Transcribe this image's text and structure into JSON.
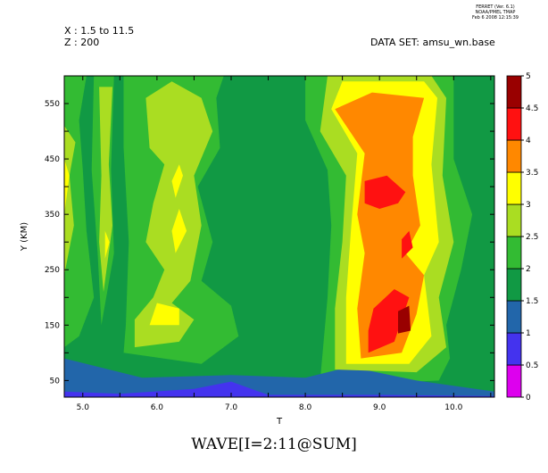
{
  "header": {
    "range_x": "X : 1.5 to 11.5",
    "range_z": "Z : 200",
    "dataset": "DATA SET: amsu_wn.base",
    "stamp": [
      "FERRET (Ver. 6.1)",
      "NOAA/PMEL TMAP",
      "Feb  6 2008 12:15:39"
    ]
  },
  "colors": {
    "levels": [
      "#dd00ee",
      "#4433ee",
      "#2266aa",
      "#119944",
      "#33bb33",
      "#aadd22",
      "#ffff00",
      "#ff8800",
      "#ff1111",
      "#990000"
    ]
  },
  "chart_data": {
    "type": "contour-filled",
    "title": "WAVE[I=2:11@SUM]",
    "xlabel": "T",
    "ylabel": "Y (KM)",
    "xlim": [
      4.75,
      10.55
    ],
    "ylim": [
      20,
      600
    ],
    "x_ticks": [
      5.0,
      5.5,
      6.0,
      6.5,
      7.0,
      7.5,
      8.0,
      8.5,
      9.0,
      9.5,
      10.0,
      10.5
    ],
    "x_tick_labels": [
      "5.0",
      "6.0",
      "7.0",
      "8.0",
      "9.0",
      "10.0"
    ],
    "x_tick_label_values": [
      5.0,
      6.0,
      7.0,
      8.0,
      9.0,
      10.0
    ],
    "y_ticks": [
      50,
      100,
      150,
      200,
      250,
      300,
      350,
      400,
      450,
      500,
      550
    ],
    "y_tick_labels": [
      "50",
      "150",
      "250",
      "350",
      "450",
      "550"
    ],
    "y_tick_label_values": [
      50,
      150,
      250,
      350,
      450,
      550
    ],
    "levels": [
      0,
      0.5,
      1,
      1.5,
      2,
      2.5,
      3,
      3.5,
      4,
      4.5,
      5
    ],
    "colorbar_labels": [
      "0",
      "0.5",
      "1",
      "1.5",
      "2",
      "2.5",
      "3",
      "3.5",
      "4",
      "4.5",
      "5"
    ],
    "regions": [
      {
        "level": 1.5,
        "points": [
          [
            4.75,
            20
          ],
          [
            10.55,
            20
          ],
          [
            10.55,
            600
          ],
          [
            4.75,
            600
          ]
        ]
      },
      {
        "level": 2.0,
        "points": [
          [
            4.95,
            130
          ],
          [
            5.15,
            200
          ],
          [
            5.05,
            320
          ],
          [
            5.0,
            430
          ],
          [
            4.95,
            520
          ],
          [
            5.05,
            600
          ],
          [
            4.75,
            600
          ],
          [
            4.75,
            110
          ]
        ]
      },
      {
        "level": 2.0,
        "points": [
          [
            5.25,
            150
          ],
          [
            5.42,
            280
          ],
          [
            5.38,
            430
          ],
          [
            5.42,
            600
          ],
          [
            5.15,
            600
          ],
          [
            5.12,
            430
          ],
          [
            5.2,
            280
          ]
        ]
      },
      {
        "level": 2.0,
        "points": [
          [
            5.55,
            100
          ],
          [
            6.6,
            80
          ],
          [
            7.1,
            130
          ],
          [
            7.0,
            185
          ],
          [
            6.6,
            230
          ],
          [
            6.75,
            300
          ],
          [
            6.55,
            400
          ],
          [
            6.85,
            470
          ],
          [
            6.8,
            560
          ],
          [
            6.9,
            600
          ],
          [
            5.55,
            600
          ],
          [
            5.55,
            470
          ],
          [
            5.62,
            300
          ],
          [
            5.58,
            150
          ]
        ]
      },
      {
        "level": 2.0,
        "points": [
          [
            8.2,
            50
          ],
          [
            8.3,
            200
          ],
          [
            8.35,
            330
          ],
          [
            8.3,
            430
          ],
          [
            8.0,
            520
          ],
          [
            8.0,
            600
          ],
          [
            10.0,
            600
          ],
          [
            10.0,
            450
          ],
          [
            10.25,
            350
          ],
          [
            10.1,
            250
          ],
          [
            9.9,
            150
          ],
          [
            9.95,
            90
          ],
          [
            9.8,
            50
          ],
          [
            9.0,
            45
          ]
        ]
      },
      {
        "level": 1.0,
        "points": [
          [
            4.75,
            20
          ],
          [
            10.55,
            20
          ],
          [
            10.55,
            30
          ],
          [
            9.5,
            50
          ],
          [
            8.6,
            75
          ],
          [
            8.0,
            55
          ],
          [
            7.0,
            60
          ],
          [
            5.8,
            55
          ],
          [
            4.75,
            90
          ]
        ]
      },
      {
        "level": 0.5,
        "points": [
          [
            4.75,
            20
          ],
          [
            10.55,
            20
          ],
          [
            10.55,
            22
          ],
          [
            9.0,
            24
          ],
          [
            7.5,
            24
          ],
          [
            7.0,
            48
          ],
          [
            6.5,
            35
          ],
          [
            5.5,
            26
          ],
          [
            4.75,
            30
          ]
        ]
      },
      {
        "level": 2.5,
        "points": [
          [
            4.75,
            240
          ],
          [
            4.88,
            330
          ],
          [
            4.82,
            420
          ],
          [
            4.9,
            480
          ],
          [
            4.75,
            510
          ]
        ]
      },
      {
        "level": 2.5,
        "points": [
          [
            5.28,
            210
          ],
          [
            5.4,
            330
          ],
          [
            5.35,
            440
          ],
          [
            5.4,
            580
          ],
          [
            5.22,
            580
          ],
          [
            5.25,
            420
          ],
          [
            5.22,
            300
          ]
        ]
      },
      {
        "level": 2.5,
        "points": [
          [
            5.7,
            110
          ],
          [
            6.3,
            120
          ],
          [
            6.5,
            160
          ],
          [
            6.2,
            190
          ],
          [
            6.45,
            230
          ],
          [
            6.6,
            330
          ],
          [
            6.5,
            420
          ],
          [
            6.75,
            500
          ],
          [
            6.6,
            560
          ],
          [
            6.2,
            590
          ],
          [
            5.85,
            560
          ],
          [
            5.9,
            470
          ],
          [
            6.1,
            440
          ],
          [
            5.95,
            370
          ],
          [
            5.85,
            300
          ],
          [
            6.1,
            250
          ],
          [
            5.95,
            200
          ],
          [
            5.7,
            160
          ]
        ]
      },
      {
        "level": 2.5,
        "points": [
          [
            8.4,
            70
          ],
          [
            9.5,
            65
          ],
          [
            9.9,
            110
          ],
          [
            9.8,
            200
          ],
          [
            10.0,
            300
          ],
          [
            9.85,
            420
          ],
          [
            9.9,
            560
          ],
          [
            9.7,
            600
          ],
          [
            8.3,
            600
          ],
          [
            8.2,
            500
          ],
          [
            8.55,
            420
          ],
          [
            8.5,
            300
          ],
          [
            8.4,
            180
          ]
        ]
      },
      {
        "level": 3.0,
        "points": [
          [
            4.75,
            350
          ],
          [
            4.82,
            420
          ],
          [
            4.75,
            450
          ]
        ]
      },
      {
        "level": 3.0,
        "points": [
          [
            5.3,
            270
          ],
          [
            5.36,
            300
          ],
          [
            5.3,
            320
          ]
        ]
      },
      {
        "level": 3.0,
        "points": [
          [
            5.9,
            150
          ],
          [
            6.3,
            150
          ],
          [
            6.3,
            180
          ],
          [
            6.0,
            190
          ]
        ]
      },
      {
        "level": 3.0,
        "points": [
          [
            6.25,
            280
          ],
          [
            6.4,
            320
          ],
          [
            6.3,
            360
          ],
          [
            6.2,
            320
          ]
        ]
      },
      {
        "level": 3.0,
        "points": [
          [
            6.25,
            380
          ],
          [
            6.35,
            420
          ],
          [
            6.3,
            440
          ],
          [
            6.2,
            410
          ]
        ]
      },
      {
        "level": 3.0,
        "points": [
          [
            8.55,
            80
          ],
          [
            9.4,
            80
          ],
          [
            9.7,
            130
          ],
          [
            9.6,
            240
          ],
          [
            9.8,
            300
          ],
          [
            9.7,
            440
          ],
          [
            9.78,
            560
          ],
          [
            9.6,
            590
          ],
          [
            8.5,
            590
          ],
          [
            8.35,
            540
          ],
          [
            8.7,
            460
          ],
          [
            8.62,
            330
          ],
          [
            8.55,
            200
          ]
        ]
      },
      {
        "level": 3.5,
        "points": [
          [
            8.75,
            90
          ],
          [
            9.3,
            100
          ],
          [
            9.5,
            170
          ],
          [
            9.6,
            240
          ],
          [
            9.35,
            280
          ],
          [
            9.55,
            330
          ],
          [
            9.45,
            420
          ],
          [
            9.45,
            490
          ],
          [
            9.6,
            560
          ],
          [
            8.9,
            570
          ],
          [
            8.4,
            540
          ],
          [
            8.8,
            460
          ],
          [
            8.7,
            350
          ],
          [
            8.8,
            280
          ],
          [
            8.7,
            180
          ]
        ]
      },
      {
        "level": 4.0,
        "points": [
          [
            8.85,
            100
          ],
          [
            9.2,
            120
          ],
          [
            9.4,
            200
          ],
          [
            9.2,
            215
          ],
          [
            8.92,
            180
          ],
          [
            8.85,
            140
          ]
        ]
      },
      {
        "level": 4.0,
        "points": [
          [
            9.3,
            270
          ],
          [
            9.45,
            290
          ],
          [
            9.4,
            320
          ],
          [
            9.3,
            305
          ]
        ]
      },
      {
        "level": 4.0,
        "points": [
          [
            8.8,
            410
          ],
          [
            9.1,
            420
          ],
          [
            9.35,
            390
          ],
          [
            9.25,
            370
          ],
          [
            9.0,
            360
          ],
          [
            8.8,
            370
          ]
        ]
      },
      {
        "level": 4.5,
        "points": [
          [
            9.25,
            135
          ],
          [
            9.42,
            140
          ],
          [
            9.4,
            185
          ],
          [
            9.25,
            175
          ]
        ]
      }
    ]
  }
}
